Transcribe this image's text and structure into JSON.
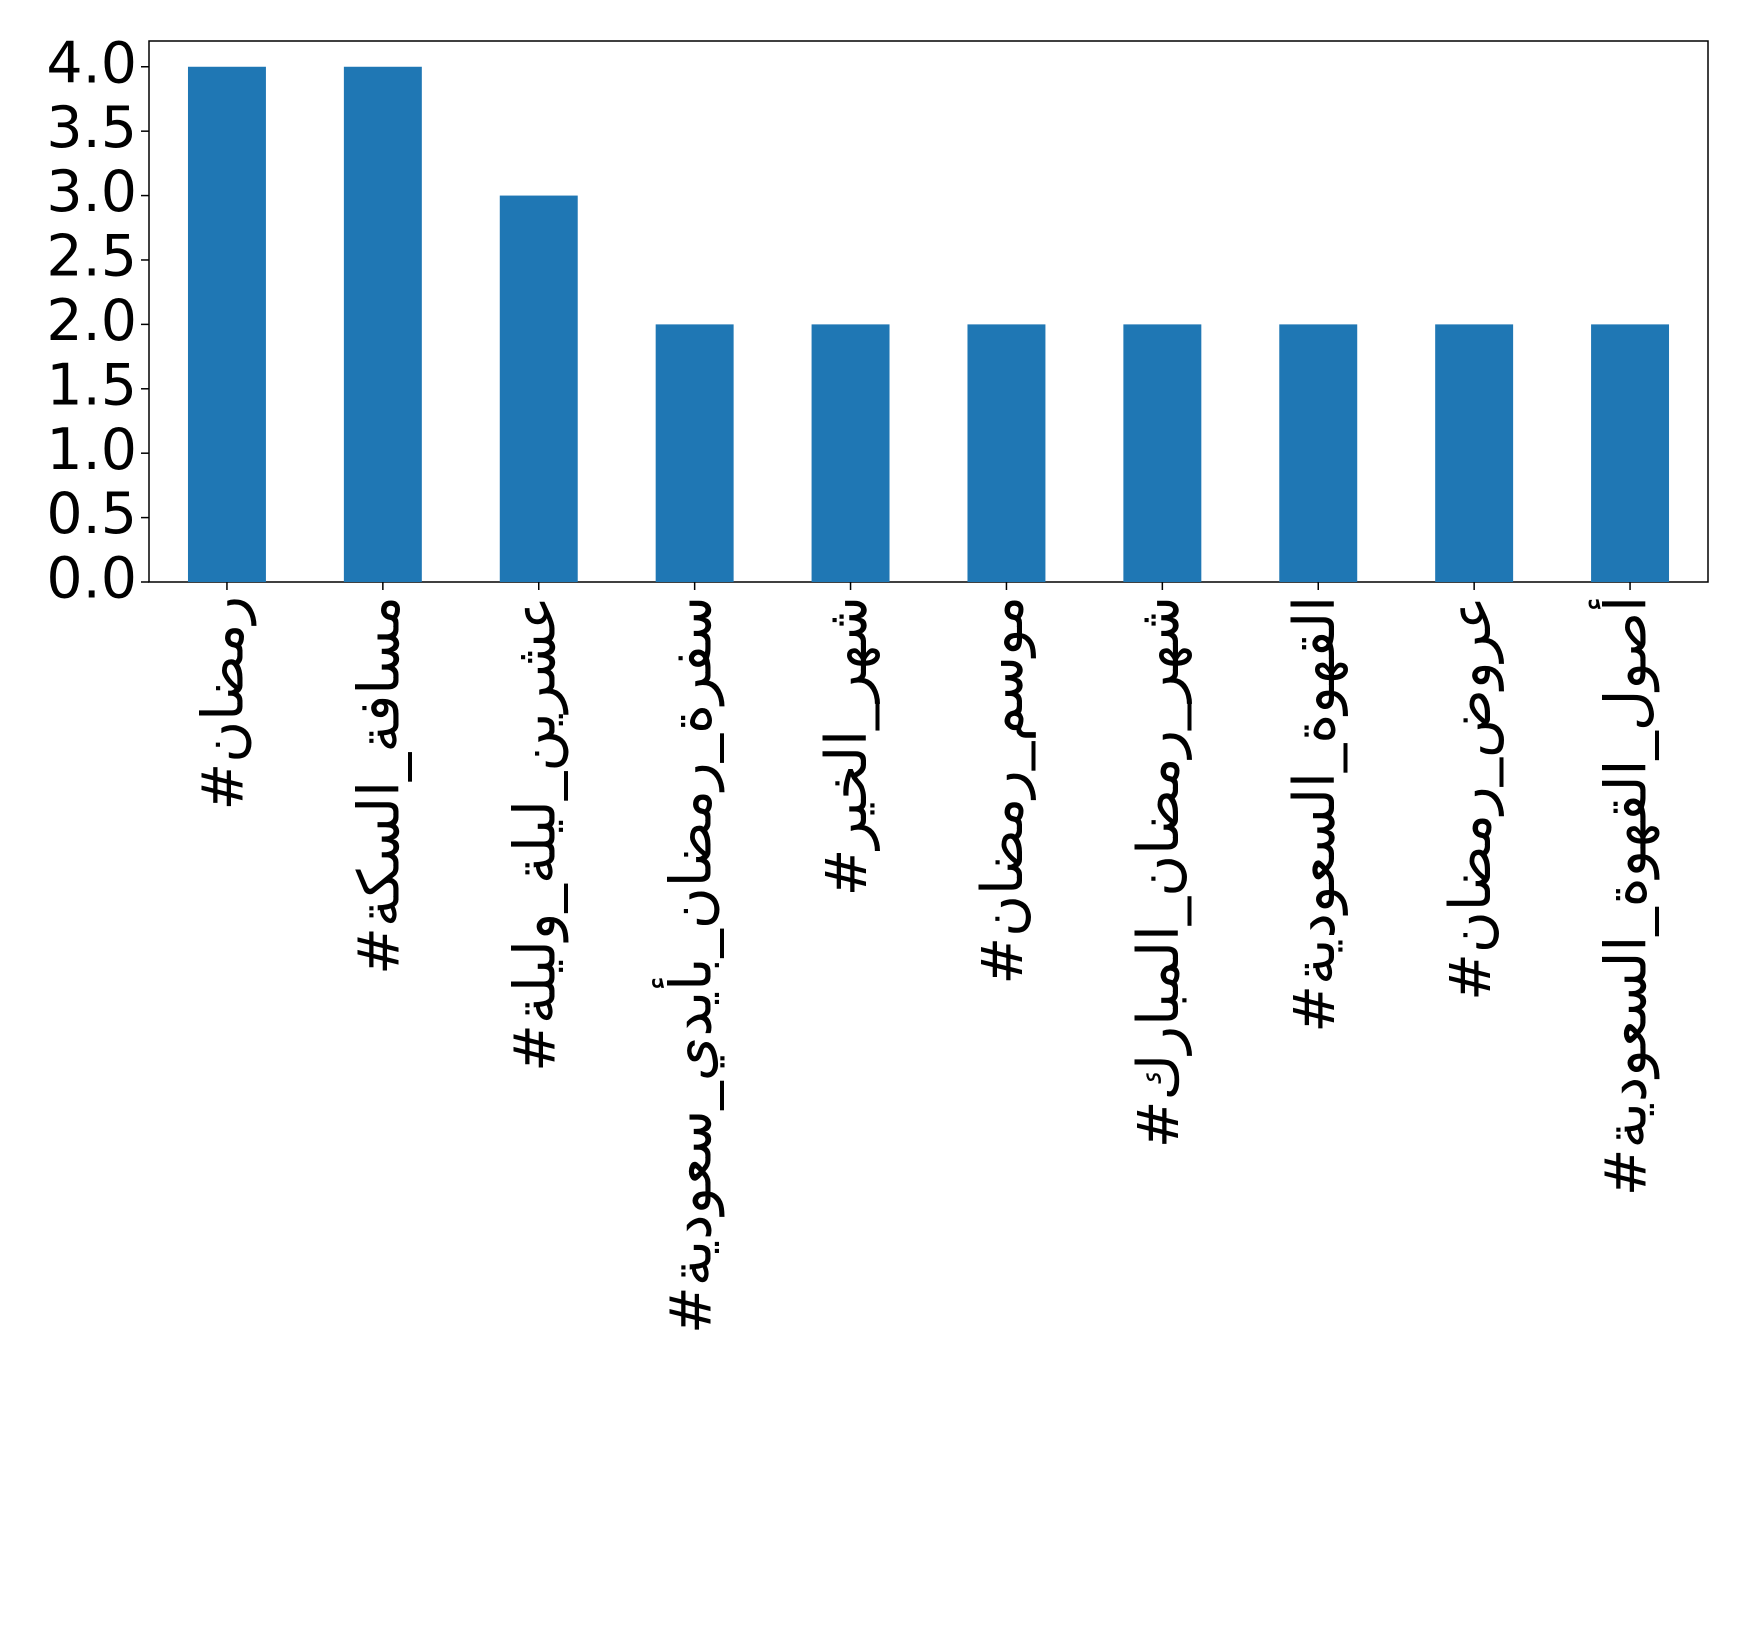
{
  "chart_data": {
    "type": "bar",
    "categories": [
      "#رمضان",
      "#مسافة_السكة",
      "#عشرين_ليلة_وليلة",
      "#سفرة_رمضان_بأيدي_سعودية",
      "#شهر_الخير",
      "#موسم_رمضان",
      "#شهر_رمضان_المبارك",
      "#القهوة_السعودية",
      "#عروض_رمضان",
      "#أصول_القهوة_السعودية"
    ],
    "values": [
      4,
      4,
      3,
      2,
      2,
      2,
      2,
      2,
      2,
      2
    ],
    "color": "#1f77b4",
    "ylim": [
      0,
      4.2
    ],
    "yticks": [
      {
        "value": 0,
        "label": "0.0"
      },
      {
        "value": 0.5,
        "label": "0.5"
      },
      {
        "value": 1,
        "label": "1.0"
      },
      {
        "value": 1.5,
        "label": "1.5"
      },
      {
        "value": 2,
        "label": "2.0"
      },
      {
        "value": 2.5,
        "label": "2.5"
      },
      {
        "value": 3,
        "label": "3.0"
      },
      {
        "value": 3.5,
        "label": "3.5"
      },
      {
        "value": 4,
        "label": "4.0"
      }
    ],
    "grid": false
  }
}
